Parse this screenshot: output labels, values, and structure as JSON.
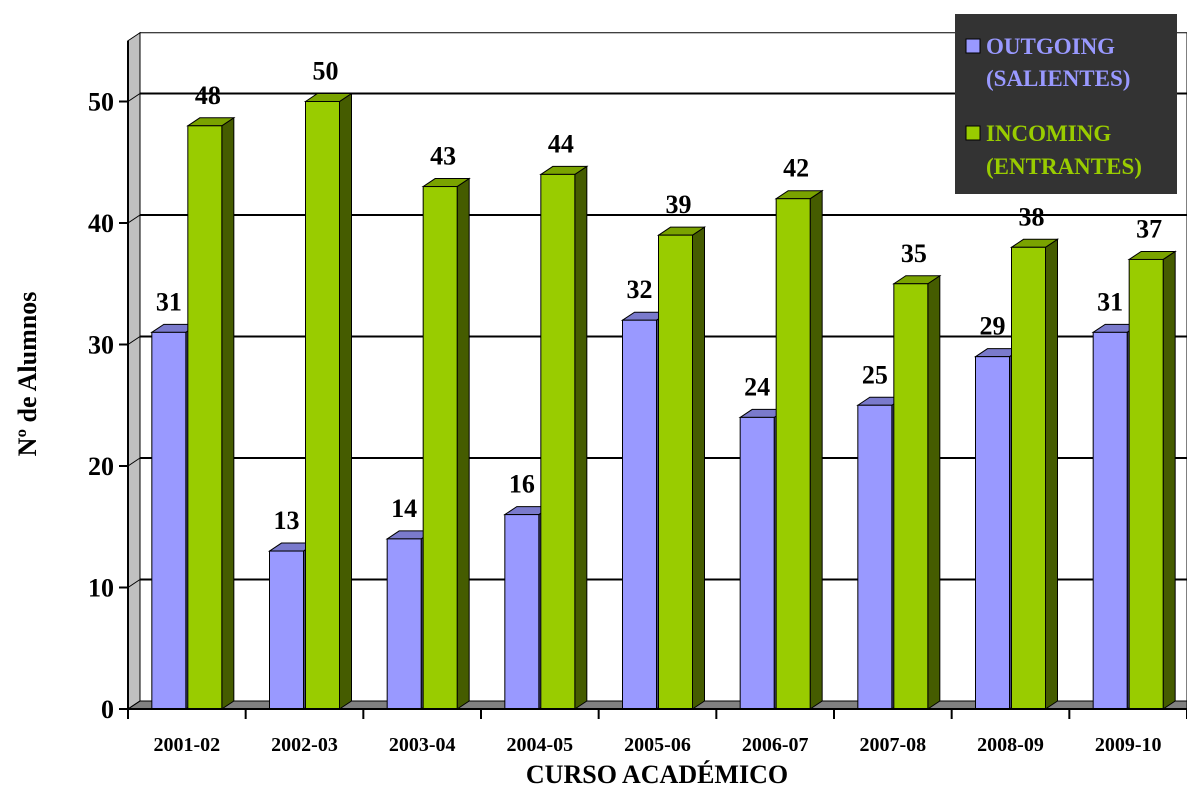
{
  "chart_data": {
    "type": "bar",
    "categories": [
      "2001-02",
      "2002-03",
      "2003-04",
      "2004-05",
      "2005-06",
      "2006-07",
      "2007-08",
      "2008-09",
      "2009-10"
    ],
    "series": [
      {
        "name": "OUTGOING (SALIENTES)",
        "legend_lines": [
          "OUTGOING",
          "(SALIENTES)"
        ],
        "color": "#9999ff",
        "values": [
          31,
          13,
          14,
          16,
          32,
          24,
          25,
          29,
          31
        ]
      },
      {
        "name": "INCOMING (ENTRANTES)",
        "legend_lines": [
          "INCOMING",
          "(ENTRANTES)"
        ],
        "color": "#99cc00",
        "values": [
          48,
          50,
          43,
          44,
          39,
          42,
          35,
          38,
          37
        ]
      }
    ],
    "xlabel": "CURSO ACADÉMICO",
    "ylabel": "Nº de Alumnos",
    "ylim": [
      0,
      50
    ],
    "yticks": [
      "0",
      "10",
      "20",
      "30",
      "40",
      "50"
    ],
    "grid": true,
    "legend_position": "top-right",
    "legend_background": "#333333"
  }
}
